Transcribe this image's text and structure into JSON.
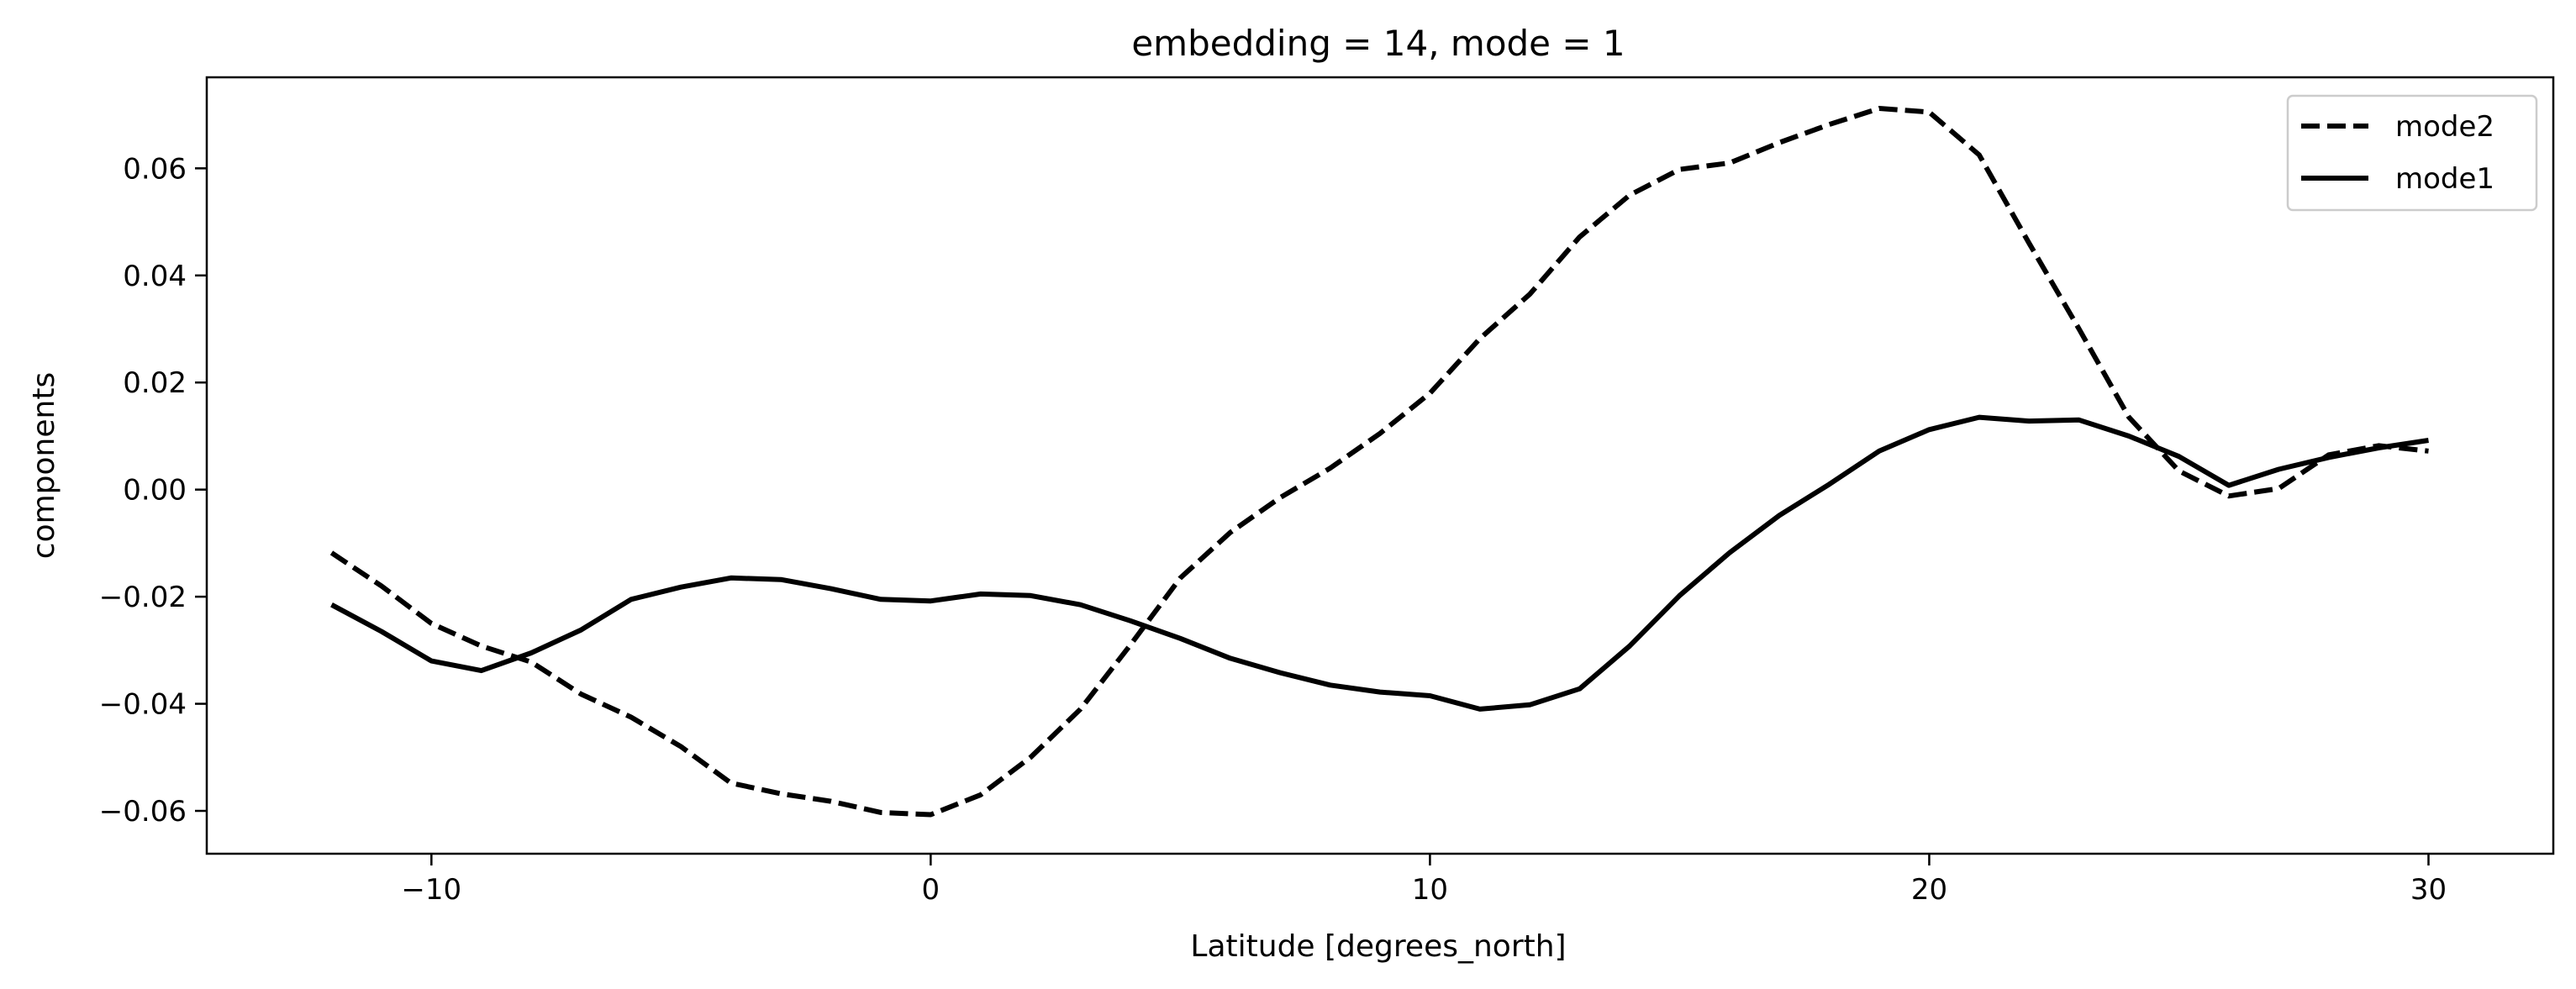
{
  "chart_data": {
    "type": "line",
    "title": "embedding = 14, mode = 1",
    "xlabel": "Latitude [degrees_north]",
    "ylabel": "components",
    "xlim": [
      -14.5,
      32.5
    ],
    "ylim": [
      -0.068,
      0.077
    ],
    "xticks": [
      -10,
      0,
      10,
      20,
      30
    ],
    "xtick_labels": [
      "−10",
      "0",
      "10",
      "20",
      "30"
    ],
    "yticks": [
      -0.06,
      -0.04,
      -0.02,
      0.0,
      0.02,
      0.04,
      0.06
    ],
    "ytick_labels": [
      "−0.06",
      "−0.04",
      "−0.02",
      "0.00",
      "0.02",
      "0.04",
      "0.06"
    ],
    "grid": false,
    "legend_position": "top-right",
    "series": [
      {
        "name": "mode2",
        "style": "dashed",
        "color": "#000000",
        "x": [
          -12,
          -11,
          -10,
          -9,
          -8,
          -7,
          -6,
          -5,
          -4,
          -3,
          -2,
          -1,
          0,
          1,
          2,
          3,
          4,
          5,
          6,
          7,
          8,
          9,
          10,
          11,
          12,
          13,
          14,
          15,
          16,
          17,
          18,
          19,
          20,
          21,
          22,
          23,
          24,
          25,
          26,
          27,
          28,
          29,
          30
        ],
        "y": [
          -0.0118,
          -0.018,
          -0.025,
          -0.0292,
          -0.0322,
          -0.0382,
          -0.0425,
          -0.048,
          -0.0548,
          -0.0568,
          -0.0582,
          -0.0603,
          -0.0607,
          -0.057,
          -0.05,
          -0.041,
          -0.029,
          -0.0165,
          -0.008,
          -0.0015,
          0.004,
          0.0105,
          0.018,
          0.0282,
          0.0365,
          0.0472,
          0.055,
          0.0598,
          0.061,
          0.0648,
          0.0682,
          0.0712,
          0.0705,
          0.0625,
          0.046,
          0.03,
          0.0135,
          0.0035,
          -0.0012,
          0.0002,
          0.0065,
          0.0082,
          0.0072
        ]
      },
      {
        "name": "mode1",
        "style": "solid",
        "color": "#000000",
        "x": [
          -12,
          -11,
          -10,
          -9,
          -8,
          -7,
          -6,
          -5,
          -4,
          -3,
          -2,
          -1,
          0,
          1,
          2,
          3,
          4,
          5,
          6,
          7,
          8,
          9,
          10,
          11,
          12,
          13,
          14,
          15,
          16,
          17,
          18,
          19,
          20,
          21,
          22,
          23,
          24,
          25,
          26,
          27,
          28,
          29,
          30
        ],
        "y": [
          -0.0215,
          -0.0265,
          -0.032,
          -0.0338,
          -0.0305,
          -0.0262,
          -0.0205,
          -0.0182,
          -0.0165,
          -0.0168,
          -0.0185,
          -0.0205,
          -0.0208,
          -0.0195,
          -0.0198,
          -0.0215,
          -0.0245,
          -0.0278,
          -0.0315,
          -0.0342,
          -0.0365,
          -0.0378,
          -0.0385,
          -0.041,
          -0.0402,
          -0.0372,
          -0.0292,
          -0.0198,
          -0.0118,
          -0.0048,
          0.001,
          0.0072,
          0.0112,
          0.0135,
          0.0128,
          0.013,
          0.01,
          0.0062,
          0.0008,
          0.0038,
          0.006,
          0.0078,
          0.0092
        ]
      }
    ]
  }
}
